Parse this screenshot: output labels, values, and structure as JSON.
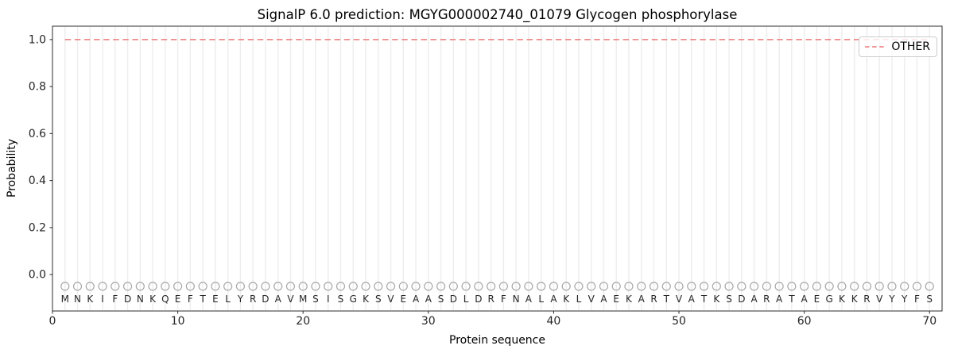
{
  "figure": {
    "title": "SignalP 6.0 prediction: MGYG000002740_01079 Glycogen phosphorylase",
    "xlabel": "Protein sequence",
    "ylabel": "Probability",
    "background": "#ffffff"
  },
  "legend": {
    "position": "upper right",
    "entries": [
      {
        "label": "OTHER",
        "line_style": "dashed",
        "color": "#ee8c8c"
      }
    ]
  },
  "chart_data": {
    "type": "line",
    "title": "SignalP 6.0 prediction: MGYG000002740_01079 Glycogen phosphorylase",
    "xlabel": "Protein sequence",
    "ylabel": "Probability",
    "xlim": [
      0,
      71
    ],
    "ylim": [
      -0.155,
      1.057
    ],
    "xticks": [
      0,
      10,
      20,
      30,
      40,
      50,
      60,
      70
    ],
    "yticks": [
      0.0,
      0.2,
      0.4,
      0.6,
      0.8,
      1.0
    ],
    "grid": {
      "vertical_per_residue": true,
      "color": "#ededed"
    },
    "legend_position": "upper right",
    "series": [
      {
        "name": "OTHER",
        "line_style": "dashed",
        "color": "#ee8c8c",
        "x_start": 1,
        "x_end": 70,
        "y_constant": 1.0
      }
    ],
    "sequence": {
      "residues": "MNKIFDNKQEFTELYRDAVMSISGKSVEAASDLDRFNALAKLVAEKARTVATKSDARATAEGKKRVYYFS",
      "position_start": 1,
      "position_end": 70,
      "marker": "open-circle",
      "marker_y": -0.05,
      "marker_color": "#a8a8a8",
      "letter_color": "#262626"
    },
    "style": {
      "spine_color": "#2b2b2b",
      "tick_color": "#2b2b2b",
      "tick_label_color": "#262626"
    }
  }
}
